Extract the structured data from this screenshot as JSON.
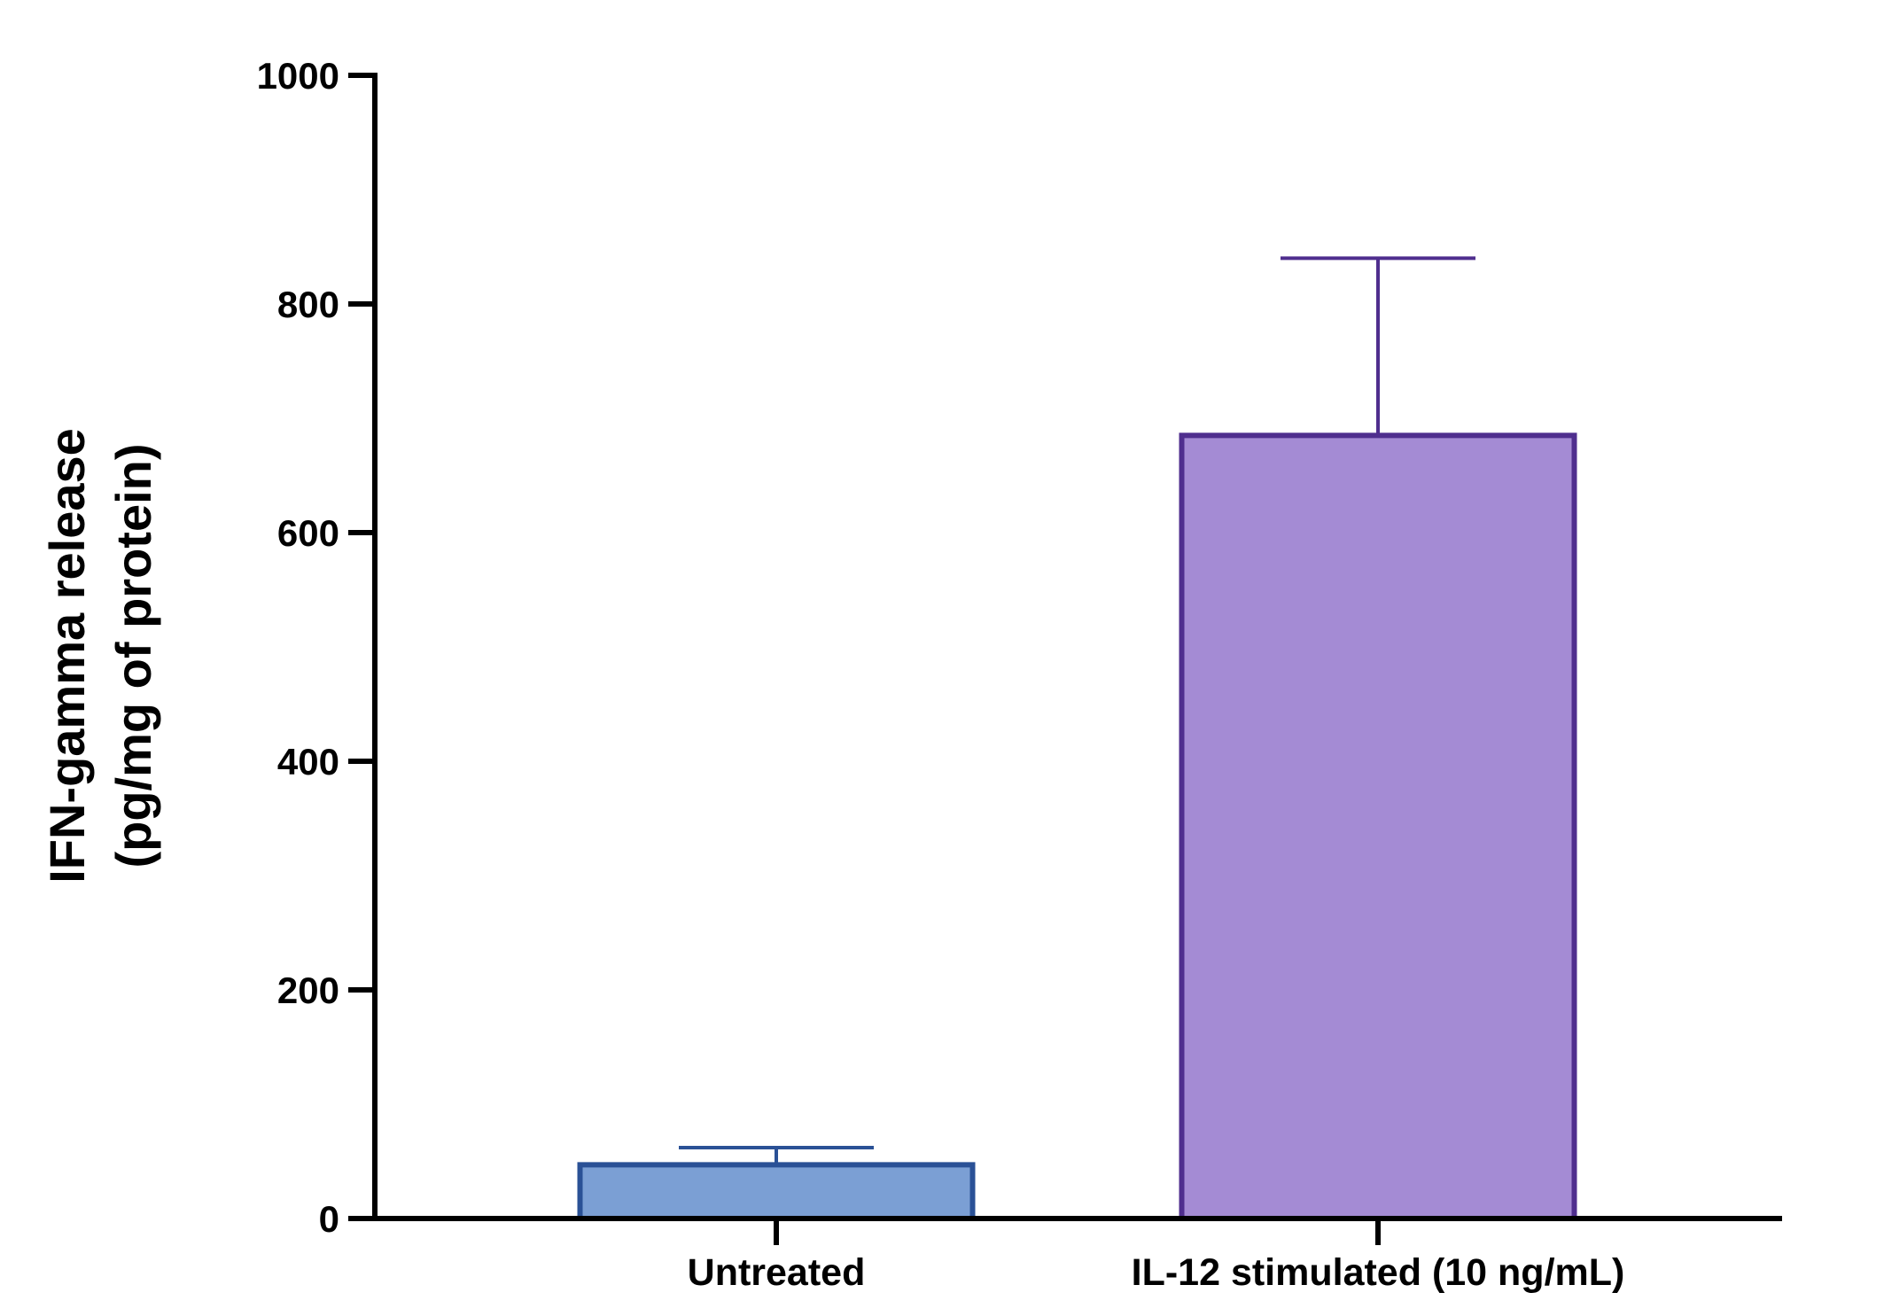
{
  "chart_data": {
    "type": "bar",
    "categories": [
      "Untreated",
      "IL-12 stimulated (10 ng/mL)"
    ],
    "values": [
      47,
      685
    ],
    "error_upper": [
      62,
      840
    ],
    "title": "",
    "xlabel": "",
    "ylabel": [
      "IFN-gamma release",
      "(pg/mg of protein)"
    ],
    "ylim": [
      0,
      1000
    ],
    "yticks": [
      0,
      200,
      400,
      600,
      800,
      1000
    ],
    "ytick_labels": [
      "0",
      "200",
      "400",
      "600",
      "800",
      "1000"
    ],
    "grid": false,
    "legend": "none",
    "colors": {
      "fill": [
        "#7b9fd4",
        "#a48bd4"
      ],
      "stroke": [
        "#2a5196",
        "#4f2e8e"
      ],
      "axis": "#000000"
    }
  }
}
